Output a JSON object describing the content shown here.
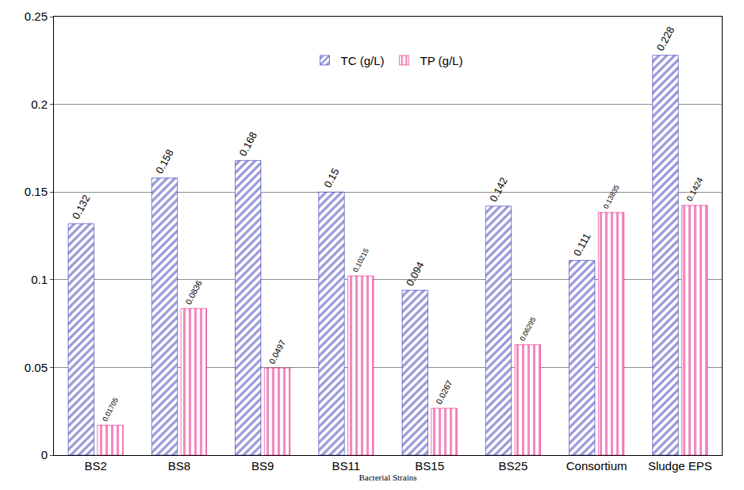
{
  "chart_data": {
    "type": "bar",
    "x_label": "Bacterial Strains",
    "categories": [
      "BS2",
      "BS8",
      "BS9",
      "BS11",
      "BS15",
      "BS25",
      "Consortium",
      "Sludge EPS"
    ],
    "series": [
      {
        "name": "TC (g/L)",
        "color": "#2b2bb5",
        "values": [
          0.132,
          0.158,
          0.168,
          0.15,
          0.094,
          0.142,
          0.111,
          0.228
        ]
      },
      {
        "name": "TP (g/L)",
        "color": "#e8177f",
        "values": [
          0.01705,
          0.0836,
          0.0497,
          0.10215,
          0.0267,
          0.06295,
          0.13835,
          0.1424
        ]
      }
    ],
    "ylim": [
      0,
      0.25
    ],
    "yticks": [
      0,
      0.05,
      0.1,
      0.15,
      0.2,
      0.25
    ],
    "grid": true,
    "legend": "top",
    "data_labels": true
  }
}
